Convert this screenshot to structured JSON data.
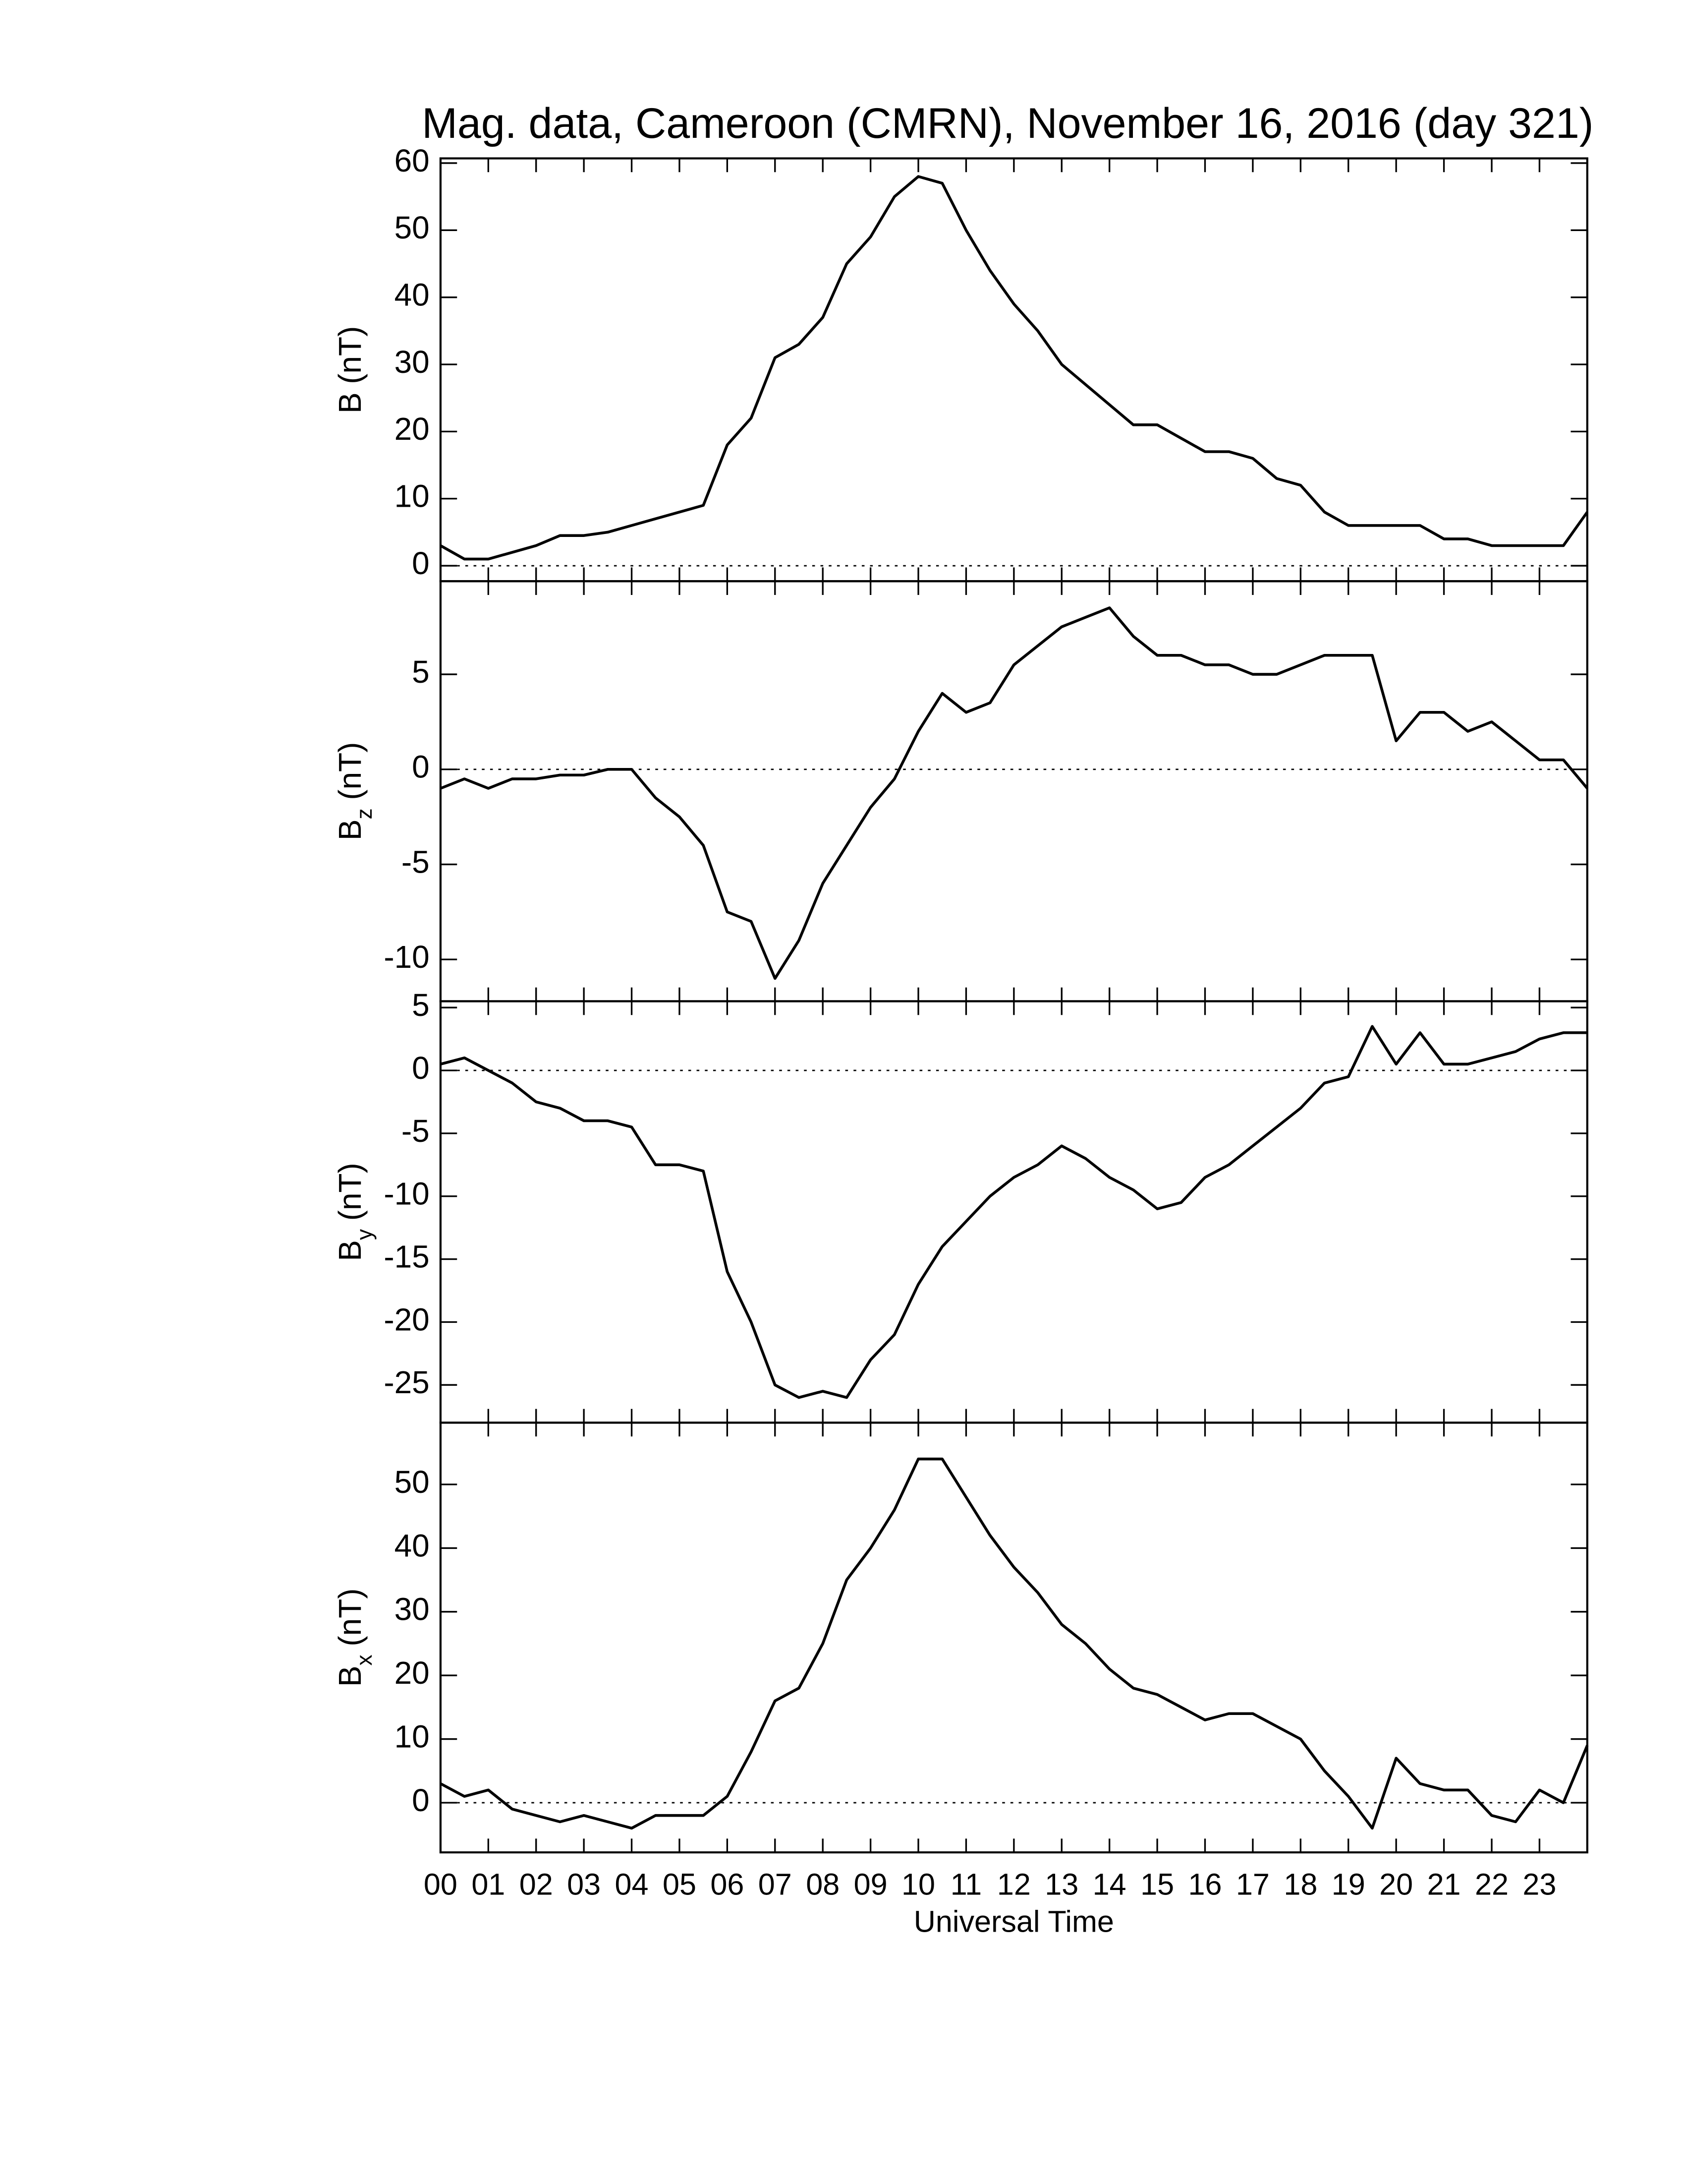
{
  "chart_data": [
    {
      "type": "line",
      "title": "Mag. data, Cameroon (CMRN), November 16, 2016 (day 321)",
      "ylabel": "B",
      "ylabel_unit": "(nT)",
      "color": "#000000",
      "zero_line": true,
      "xlim": [
        0,
        24
      ],
      "ylim": [
        -2.3,
        60.7
      ],
      "yticks": [
        0,
        10,
        20,
        30,
        40,
        50,
        60
      ],
      "x": [
        0,
        0.5,
        1,
        1.5,
        2,
        2.5,
        3,
        3.5,
        4,
        4.5,
        5,
        5.5,
        6,
        6.5,
        7,
        7.5,
        8,
        8.5,
        9,
        9.5,
        10,
        10.5,
        11,
        11.5,
        12,
        12.5,
        13,
        13.5,
        14,
        14.5,
        15,
        15.5,
        16,
        16.5,
        17,
        17.5,
        18,
        18.5,
        19,
        19.5,
        20,
        20.5,
        21,
        21.5,
        22,
        22.5,
        23,
        23.5,
        24
      ],
      "values": [
        3,
        1,
        1,
        2,
        3,
        4.5,
        4.5,
        5,
        6,
        7,
        8,
        9,
        18,
        22,
        31,
        33,
        37,
        45,
        49,
        55,
        58,
        57,
        50,
        44,
        39,
        35,
        30,
        27,
        24,
        21,
        21,
        19,
        17,
        17,
        16,
        13,
        12,
        8,
        6,
        6,
        6,
        6,
        4,
        4,
        3,
        3,
        3,
        3,
        8
      ]
    },
    {
      "type": "line",
      "ylabel": "B",
      "ylabel_sub": "z",
      "ylabel_unit": "(nT)",
      "color": "#000000",
      "zero_line": true,
      "xlim": [
        0,
        24
      ],
      "ylim": [
        -12.2,
        9.9
      ],
      "yticks": [
        -10,
        -5,
        0,
        5
      ],
      "x": [
        0,
        0.5,
        1,
        1.5,
        2,
        2.5,
        3,
        3.5,
        4,
        4.5,
        5,
        5.5,
        6,
        6.5,
        7,
        7.5,
        8,
        8.5,
        9,
        9.5,
        10,
        10.5,
        11,
        11.5,
        12,
        12.5,
        13,
        13.5,
        14,
        14.5,
        15,
        15.5,
        16,
        16.5,
        17,
        17.5,
        18,
        18.5,
        19,
        19.5,
        20,
        20.5,
        21,
        21.5,
        22,
        22.5,
        23,
        23.5,
        24
      ],
      "values": [
        -1,
        -0.5,
        -1,
        -0.5,
        -0.5,
        -0.3,
        -0.3,
        0,
        0,
        -1.5,
        -2.5,
        -4,
        -7.5,
        -8,
        -11,
        -9,
        -6,
        -4,
        -2,
        -0.5,
        2,
        4,
        3,
        3.5,
        5.5,
        6.5,
        7.5,
        8,
        8.5,
        7,
        6,
        6,
        5.5,
        5.5,
        5,
        5,
        5.5,
        6,
        6,
        6,
        1.5,
        3,
        3,
        2,
        2.5,
        1.5,
        0.5,
        0.5,
        -1
      ]
    },
    {
      "type": "line",
      "ylabel": "B",
      "ylabel_sub": "y",
      "ylabel_unit": "(nT)",
      "color": "#000000",
      "zero_line": true,
      "xlim": [
        0,
        24
      ],
      "ylim": [
        -28,
        5.5
      ],
      "yticks": [
        -25,
        -20,
        -15,
        -10,
        -5,
        0,
        5
      ],
      "x": [
        0,
        0.5,
        1,
        1.5,
        2,
        2.5,
        3,
        3.5,
        4,
        4.5,
        5,
        5.5,
        6,
        6.5,
        7,
        7.5,
        8,
        8.5,
        9,
        9.5,
        10,
        10.5,
        11,
        11.5,
        12,
        12.5,
        13,
        13.5,
        14,
        14.5,
        15,
        15.5,
        16,
        16.5,
        17,
        17.5,
        18,
        18.5,
        19,
        19.5,
        20,
        20.5,
        21,
        21.5,
        22,
        22.5,
        23,
        23.5,
        24
      ],
      "values": [
        0.5,
        1,
        0,
        -1,
        -2.5,
        -3,
        -4,
        -4,
        -4.5,
        -7.5,
        -7.5,
        -8,
        -16,
        -20,
        -25,
        -26,
        -25.5,
        -26,
        -23,
        -21,
        -17,
        -14,
        -12,
        -10,
        -8.5,
        -7.5,
        -6,
        -7,
        -8.5,
        -9.5,
        -11,
        -10.5,
        -8.5,
        -7.5,
        -6,
        -4.5,
        -3,
        -1,
        -0.5,
        3.5,
        0.5,
        3,
        0.5,
        0.5,
        1,
        1.5,
        2.5,
        3,
        3
      ]
    },
    {
      "type": "line",
      "ylabel": "B",
      "ylabel_sub": "x",
      "ylabel_unit": "(nT)",
      "xlabel": "Universal Time",
      "color": "#000000",
      "zero_line": true,
      "xlim": [
        0,
        24
      ],
      "ylim": [
        -7.8,
        59.7
      ],
      "yticks": [
        0,
        10,
        20,
        30,
        40,
        50
      ],
      "xticks": [
        {
          "value": 0,
          "label": "00"
        },
        {
          "value": 1,
          "label": "01"
        },
        {
          "value": 2,
          "label": "02"
        },
        {
          "value": 3,
          "label": "03"
        },
        {
          "value": 4,
          "label": "04"
        },
        {
          "value": 5,
          "label": "05"
        },
        {
          "value": 6,
          "label": "06"
        },
        {
          "value": 7,
          "label": "07"
        },
        {
          "value": 8,
          "label": "08"
        },
        {
          "value": 9,
          "label": "09"
        },
        {
          "value": 10,
          "label": "10"
        },
        {
          "value": 11,
          "label": "11"
        },
        {
          "value": 12,
          "label": "12"
        },
        {
          "value": 13,
          "label": "13"
        },
        {
          "value": 14,
          "label": "14"
        },
        {
          "value": 15,
          "label": "15"
        },
        {
          "value": 16,
          "label": "16"
        },
        {
          "value": 17,
          "label": "17"
        },
        {
          "value": 18,
          "label": "18"
        },
        {
          "value": 19,
          "label": "19"
        },
        {
          "value": 20,
          "label": "20"
        },
        {
          "value": 21,
          "label": "21"
        },
        {
          "value": 22,
          "label": "22"
        },
        {
          "value": 23,
          "label": "23"
        }
      ],
      "x": [
        0,
        0.5,
        1,
        1.5,
        2,
        2.5,
        3,
        3.5,
        4,
        4.5,
        5,
        5.5,
        6,
        6.5,
        7,
        7.5,
        8,
        8.5,
        9,
        9.5,
        10,
        10.5,
        11,
        11.5,
        12,
        12.5,
        13,
        13.5,
        14,
        14.5,
        15,
        15.5,
        16,
        16.5,
        17,
        17.5,
        18,
        18.5,
        19,
        19.5,
        20,
        20.5,
        21,
        21.5,
        22,
        22.5,
        23,
        23.5,
        24
      ],
      "values": [
        3,
        1,
        2,
        -1,
        -2,
        -3,
        -2,
        -3,
        -4,
        -2,
        -2,
        -2,
        1,
        8,
        16,
        18,
        25,
        35,
        40,
        46,
        54,
        54,
        48,
        42,
        37,
        33,
        28,
        25,
        21,
        18,
        17,
        15,
        13,
        14,
        14,
        12,
        10,
        5,
        1,
        -4,
        7,
        3,
        2,
        2,
        -2,
        -3,
        2,
        0,
        9
      ]
    }
  ]
}
